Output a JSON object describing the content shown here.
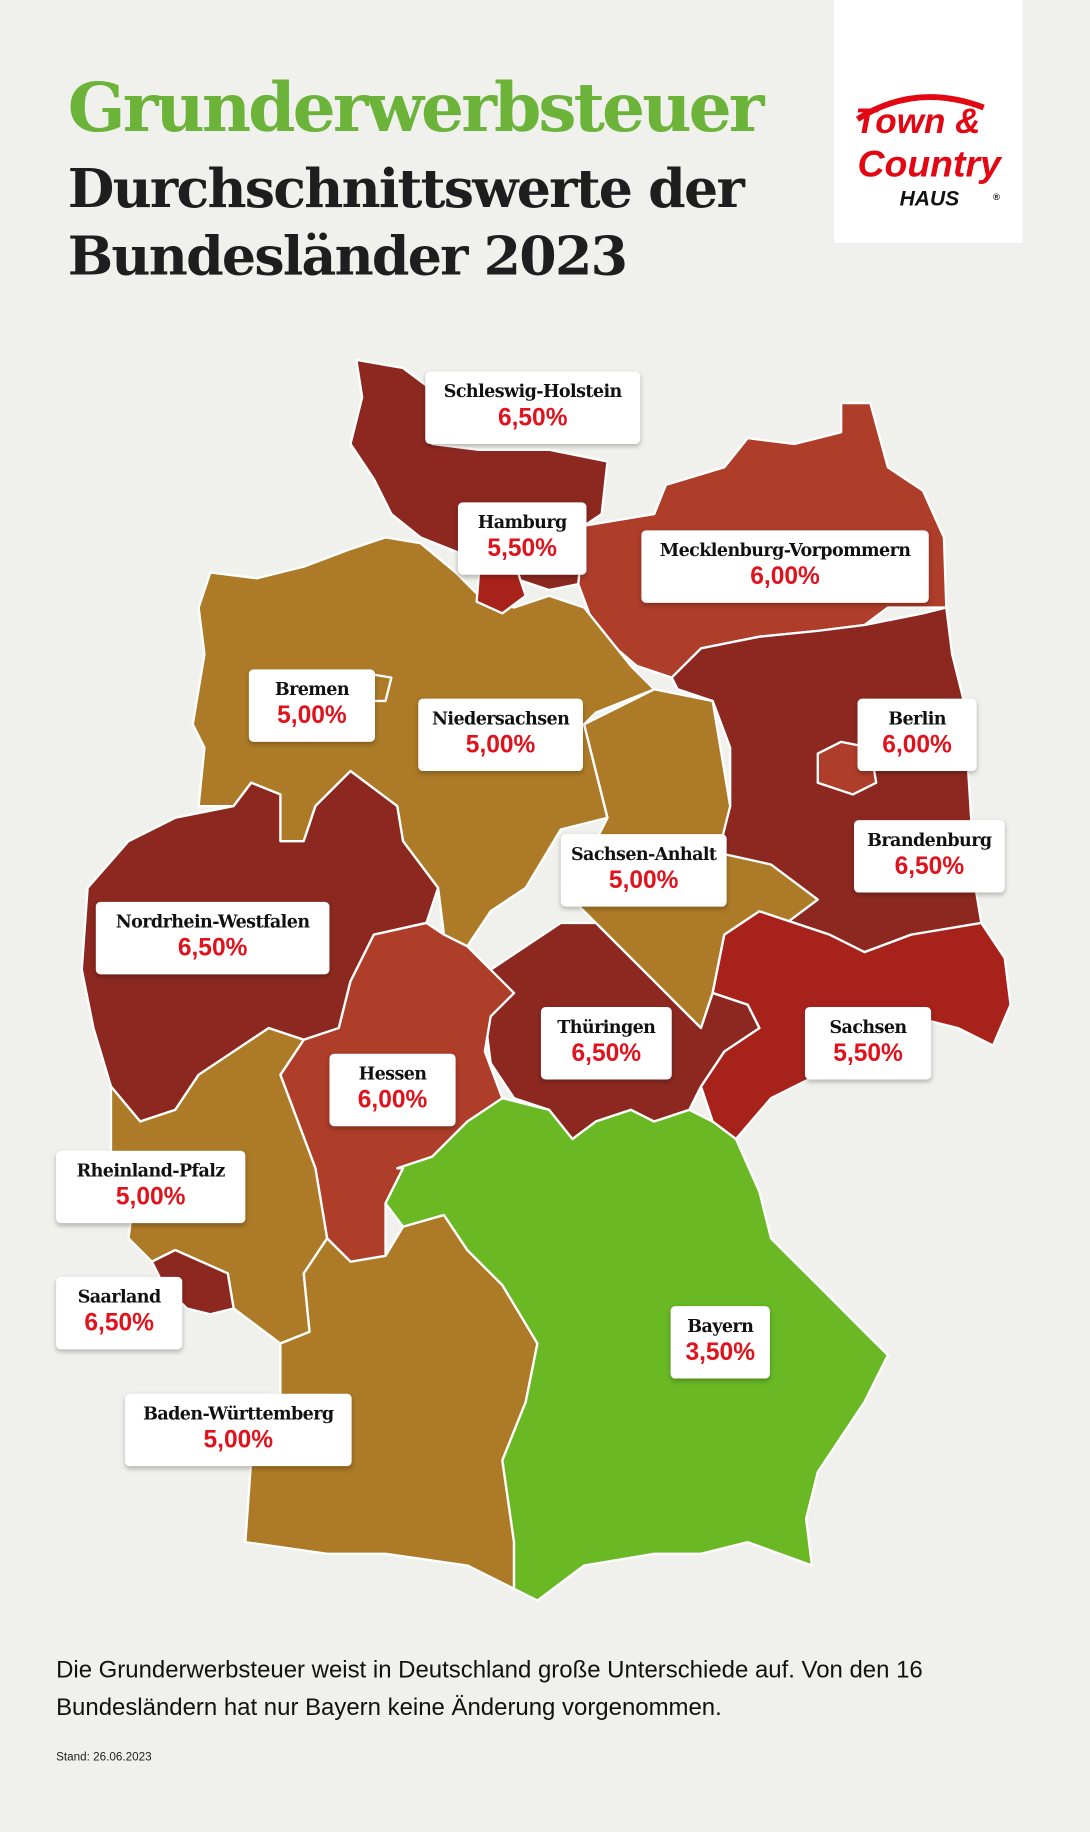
{
  "header": {
    "title": "Grunderwerbsteuer",
    "subtitle_line1": "Durchschnittswerte der",
    "subtitle_line2": "Bundesländer 2023"
  },
  "logo": {
    "line1": "Town &",
    "line2": "Country",
    "line3": "HAUS",
    "mark": "®",
    "color": "#e30613"
  },
  "colors": {
    "6,50%": "#8c2820",
    "6,00%": "#ae3d2a",
    "5,50%": "#a8221c",
    "5,00%": "#ad7b27",
    "3,50%": "#69b824"
  },
  "states": [
    {
      "name": "Schleswig-Holstein",
      "rate": "6,50%"
    },
    {
      "name": "Hamburg",
      "rate": "5,50%"
    },
    {
      "name": "Mecklenburg-Vorpommern",
      "rate": "6,00%"
    },
    {
      "name": "Bremen",
      "rate": "5,00%"
    },
    {
      "name": "Niedersachsen",
      "rate": "5,00%"
    },
    {
      "name": "Berlin",
      "rate": "6,00%"
    },
    {
      "name": "Brandenburg",
      "rate": "6,50%"
    },
    {
      "name": "Sachsen-Anhalt",
      "rate": "5,00%"
    },
    {
      "name": "Nordrhein-Westfalen",
      "rate": "6,50%"
    },
    {
      "name": "Thüringen",
      "rate": "6,50%"
    },
    {
      "name": "Sachsen",
      "rate": "5,50%"
    },
    {
      "name": "Hessen",
      "rate": "6,00%"
    },
    {
      "name": "Rheinland-Pfalz",
      "rate": "5,00%"
    },
    {
      "name": "Saarland",
      "rate": "6,50%"
    },
    {
      "name": "Bayern",
      "rate": "3,50%"
    },
    {
      "name": "Baden-Württemberg",
      "rate": "5,00%"
    }
  ],
  "footer": {
    "description": "Die Grunderwerbsteuer weist in Deutschland große Unterschiede auf. Von den 16 Bundesländern hat nur Bayern keine Änderung vorgenommen.",
    "stand": "Stand: 26.06.2023"
  }
}
